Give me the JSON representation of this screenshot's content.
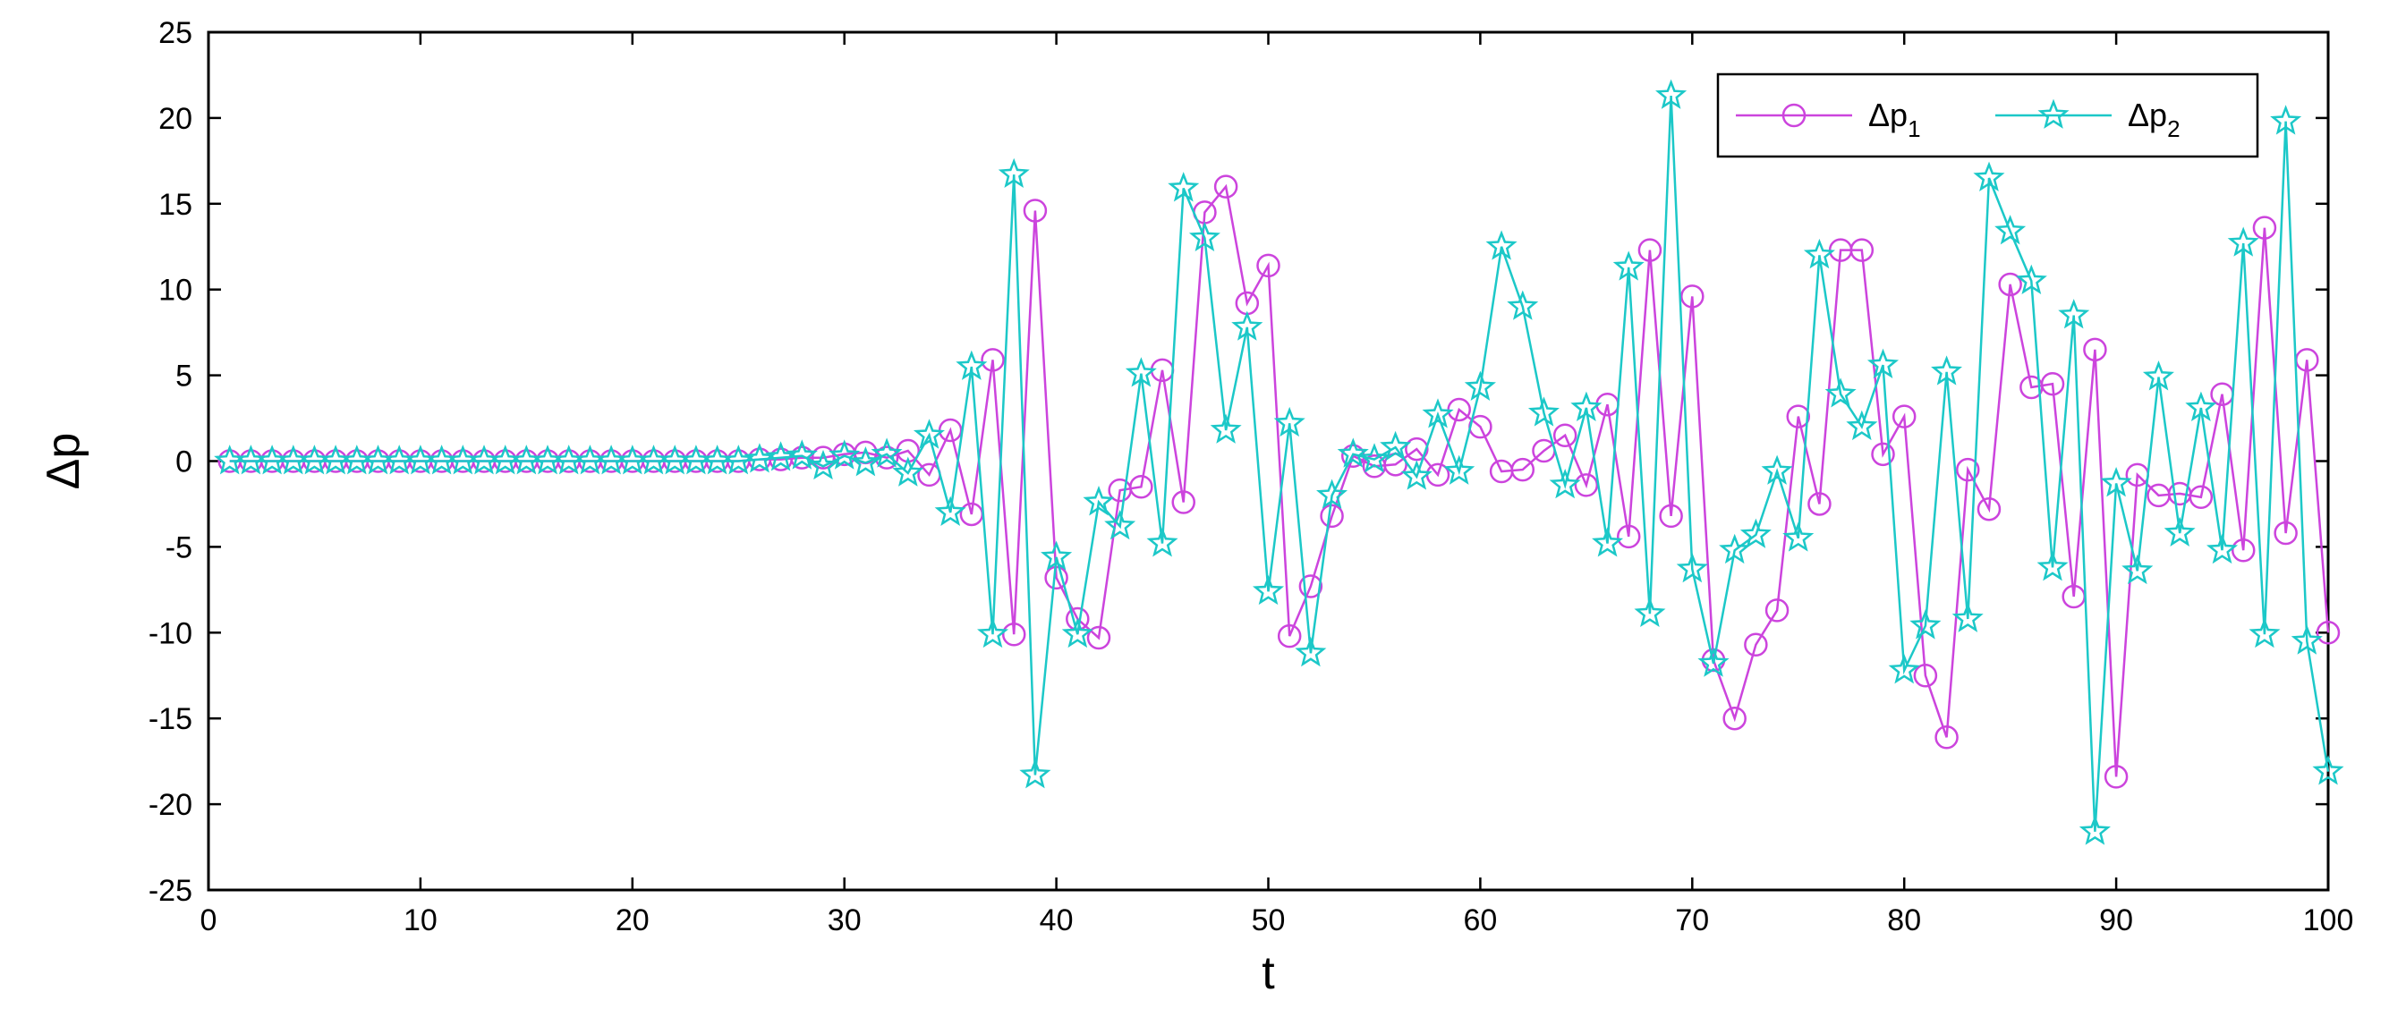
{
  "chart_data": {
    "type": "line",
    "xlabel": "t",
    "ylabel": "Δp",
    "xlim": [
      0,
      100
    ],
    "ylim": [
      -25,
      25
    ],
    "xticks": [
      0,
      10,
      20,
      30,
      40,
      50,
      60,
      70,
      80,
      90,
      100
    ],
    "yticks": [
      -25,
      -20,
      -15,
      -10,
      -5,
      0,
      5,
      10,
      15,
      20,
      25
    ],
    "grid": false,
    "legend_position": "top-right",
    "series": [
      {
        "name": "Δp",
        "subscript": "1",
        "color": "#cc44dd",
        "marker": "circle",
        "x": [
          1,
          2,
          3,
          4,
          5,
          6,
          7,
          8,
          9,
          10,
          11,
          12,
          13,
          14,
          15,
          16,
          17,
          18,
          19,
          20,
          21,
          22,
          23,
          24,
          25,
          26,
          27,
          28,
          29,
          30,
          31,
          32,
          33,
          34,
          35,
          36,
          37,
          38,
          39,
          40,
          41,
          42,
          43,
          44,
          45,
          46,
          47,
          48,
          49,
          50,
          51,
          52,
          53,
          54,
          55,
          56,
          57,
          58,
          59,
          60,
          61,
          62,
          63,
          64,
          65,
          66,
          67,
          68,
          69,
          70,
          71,
          72,
          73,
          74,
          75,
          76,
          77,
          78,
          79,
          80,
          81,
          82,
          83,
          84,
          85,
          86,
          87,
          88,
          89,
          90,
          91,
          92,
          93,
          94,
          95,
          96,
          97,
          98,
          99,
          100
        ],
        "values": [
          0,
          0,
          0,
          0,
          0,
          0,
          0,
          0,
          0,
          0,
          0,
          0,
          0,
          0,
          0,
          0,
          0,
          0,
          0,
          0,
          0,
          0,
          0,
          0,
          0,
          0.1,
          0.1,
          0.2,
          0.2,
          0.4,
          0.5,
          0.2,
          0.6,
          -0.8,
          1.8,
          -3.1,
          5.9,
          -10.1,
          14.6,
          -6.8,
          -9.2,
          -10.3,
          -1.7,
          -1.5,
          5.3,
          -2.4,
          14.5,
          16,
          9.2,
          11.4,
          -10.2,
          -7.3,
          -3.2,
          0.3,
          -0.3,
          -0.2,
          0.7,
          -0.8,
          3,
          2,
          -0.6,
          -0.5,
          0.6,
          1.5,
          -1.4,
          3.3,
          -4.4,
          12.3,
          -3.2,
          9.6,
          -11.6,
          -15,
          -10.7,
          -8.7,
          2.6,
          -2.5,
          12.3,
          12.3,
          0.4,
          2.6,
          -12.5,
          -16.1,
          -0.5,
          -2.8,
          10.3,
          4.3,
          4.5,
          -7.9,
          6.5,
          -18.4,
          -0.8,
          -2,
          -1.9,
          -2.1,
          3.9,
          -5.2,
          13.6,
          -4.2,
          5.9,
          -10
        ]
      },
      {
        "name": "Δp",
        "subscript": "2",
        "color": "#1cc8c8",
        "marker": "star",
        "x": [
          1,
          2,
          3,
          4,
          5,
          6,
          7,
          8,
          9,
          10,
          11,
          12,
          13,
          14,
          15,
          16,
          17,
          18,
          19,
          20,
          21,
          22,
          23,
          24,
          25,
          26,
          27,
          28,
          29,
          30,
          31,
          32,
          33,
          34,
          35,
          36,
          37,
          38,
          39,
          40,
          41,
          42,
          43,
          44,
          45,
          46,
          47,
          48,
          49,
          50,
          51,
          52,
          53,
          54,
          55,
          56,
          57,
          58,
          59,
          60,
          61,
          62,
          63,
          64,
          65,
          66,
          67,
          68,
          69,
          70,
          71,
          72,
          73,
          74,
          75,
          76,
          77,
          78,
          79,
          80,
          81,
          82,
          83,
          84,
          85,
          86,
          87,
          88,
          89,
          90,
          91,
          92,
          93,
          94,
          95,
          96,
          97,
          98,
          99,
          100
        ],
        "values": [
          0,
          0,
          0,
          0,
          0,
          0,
          0,
          0,
          0,
          0,
          0,
          0,
          0,
          0,
          0,
          0,
          0,
          0,
          0,
          0,
          0,
          0,
          0,
          0,
          0,
          0.1,
          0.2,
          0.3,
          -0.3,
          0.3,
          -0.1,
          0.4,
          -0.7,
          1.5,
          -3,
          5.5,
          -10.1,
          16.7,
          -18.3,
          -5.6,
          -10.1,
          -2.4,
          -3.8,
          5.1,
          -4.8,
          15.9,
          13,
          1.8,
          7.8,
          -7.6,
          2.2,
          -11.2,
          -2,
          0.4,
          0.1,
          0.8,
          -0.9,
          2.7,
          -0.6,
          4.3,
          12.5,
          9,
          2.8,
          -1.4,
          3.1,
          -4.8,
          11.3,
          -8.9,
          21.3,
          -6.3,
          -11.8,
          -5.2,
          -4.3,
          -0.6,
          -4.5,
          12,
          3.9,
          2,
          5.6,
          -12.2,
          -9.6,
          5.2,
          -9.2,
          16.5,
          13.4,
          10.5,
          -6.2,
          8.5,
          -21.6,
          -1.3,
          -6.4,
          4.9,
          -4.2,
          3.1,
          -5.2,
          12.7,
          -10.1,
          19.8,
          -10.5,
          -18.1
        ]
      }
    ]
  }
}
